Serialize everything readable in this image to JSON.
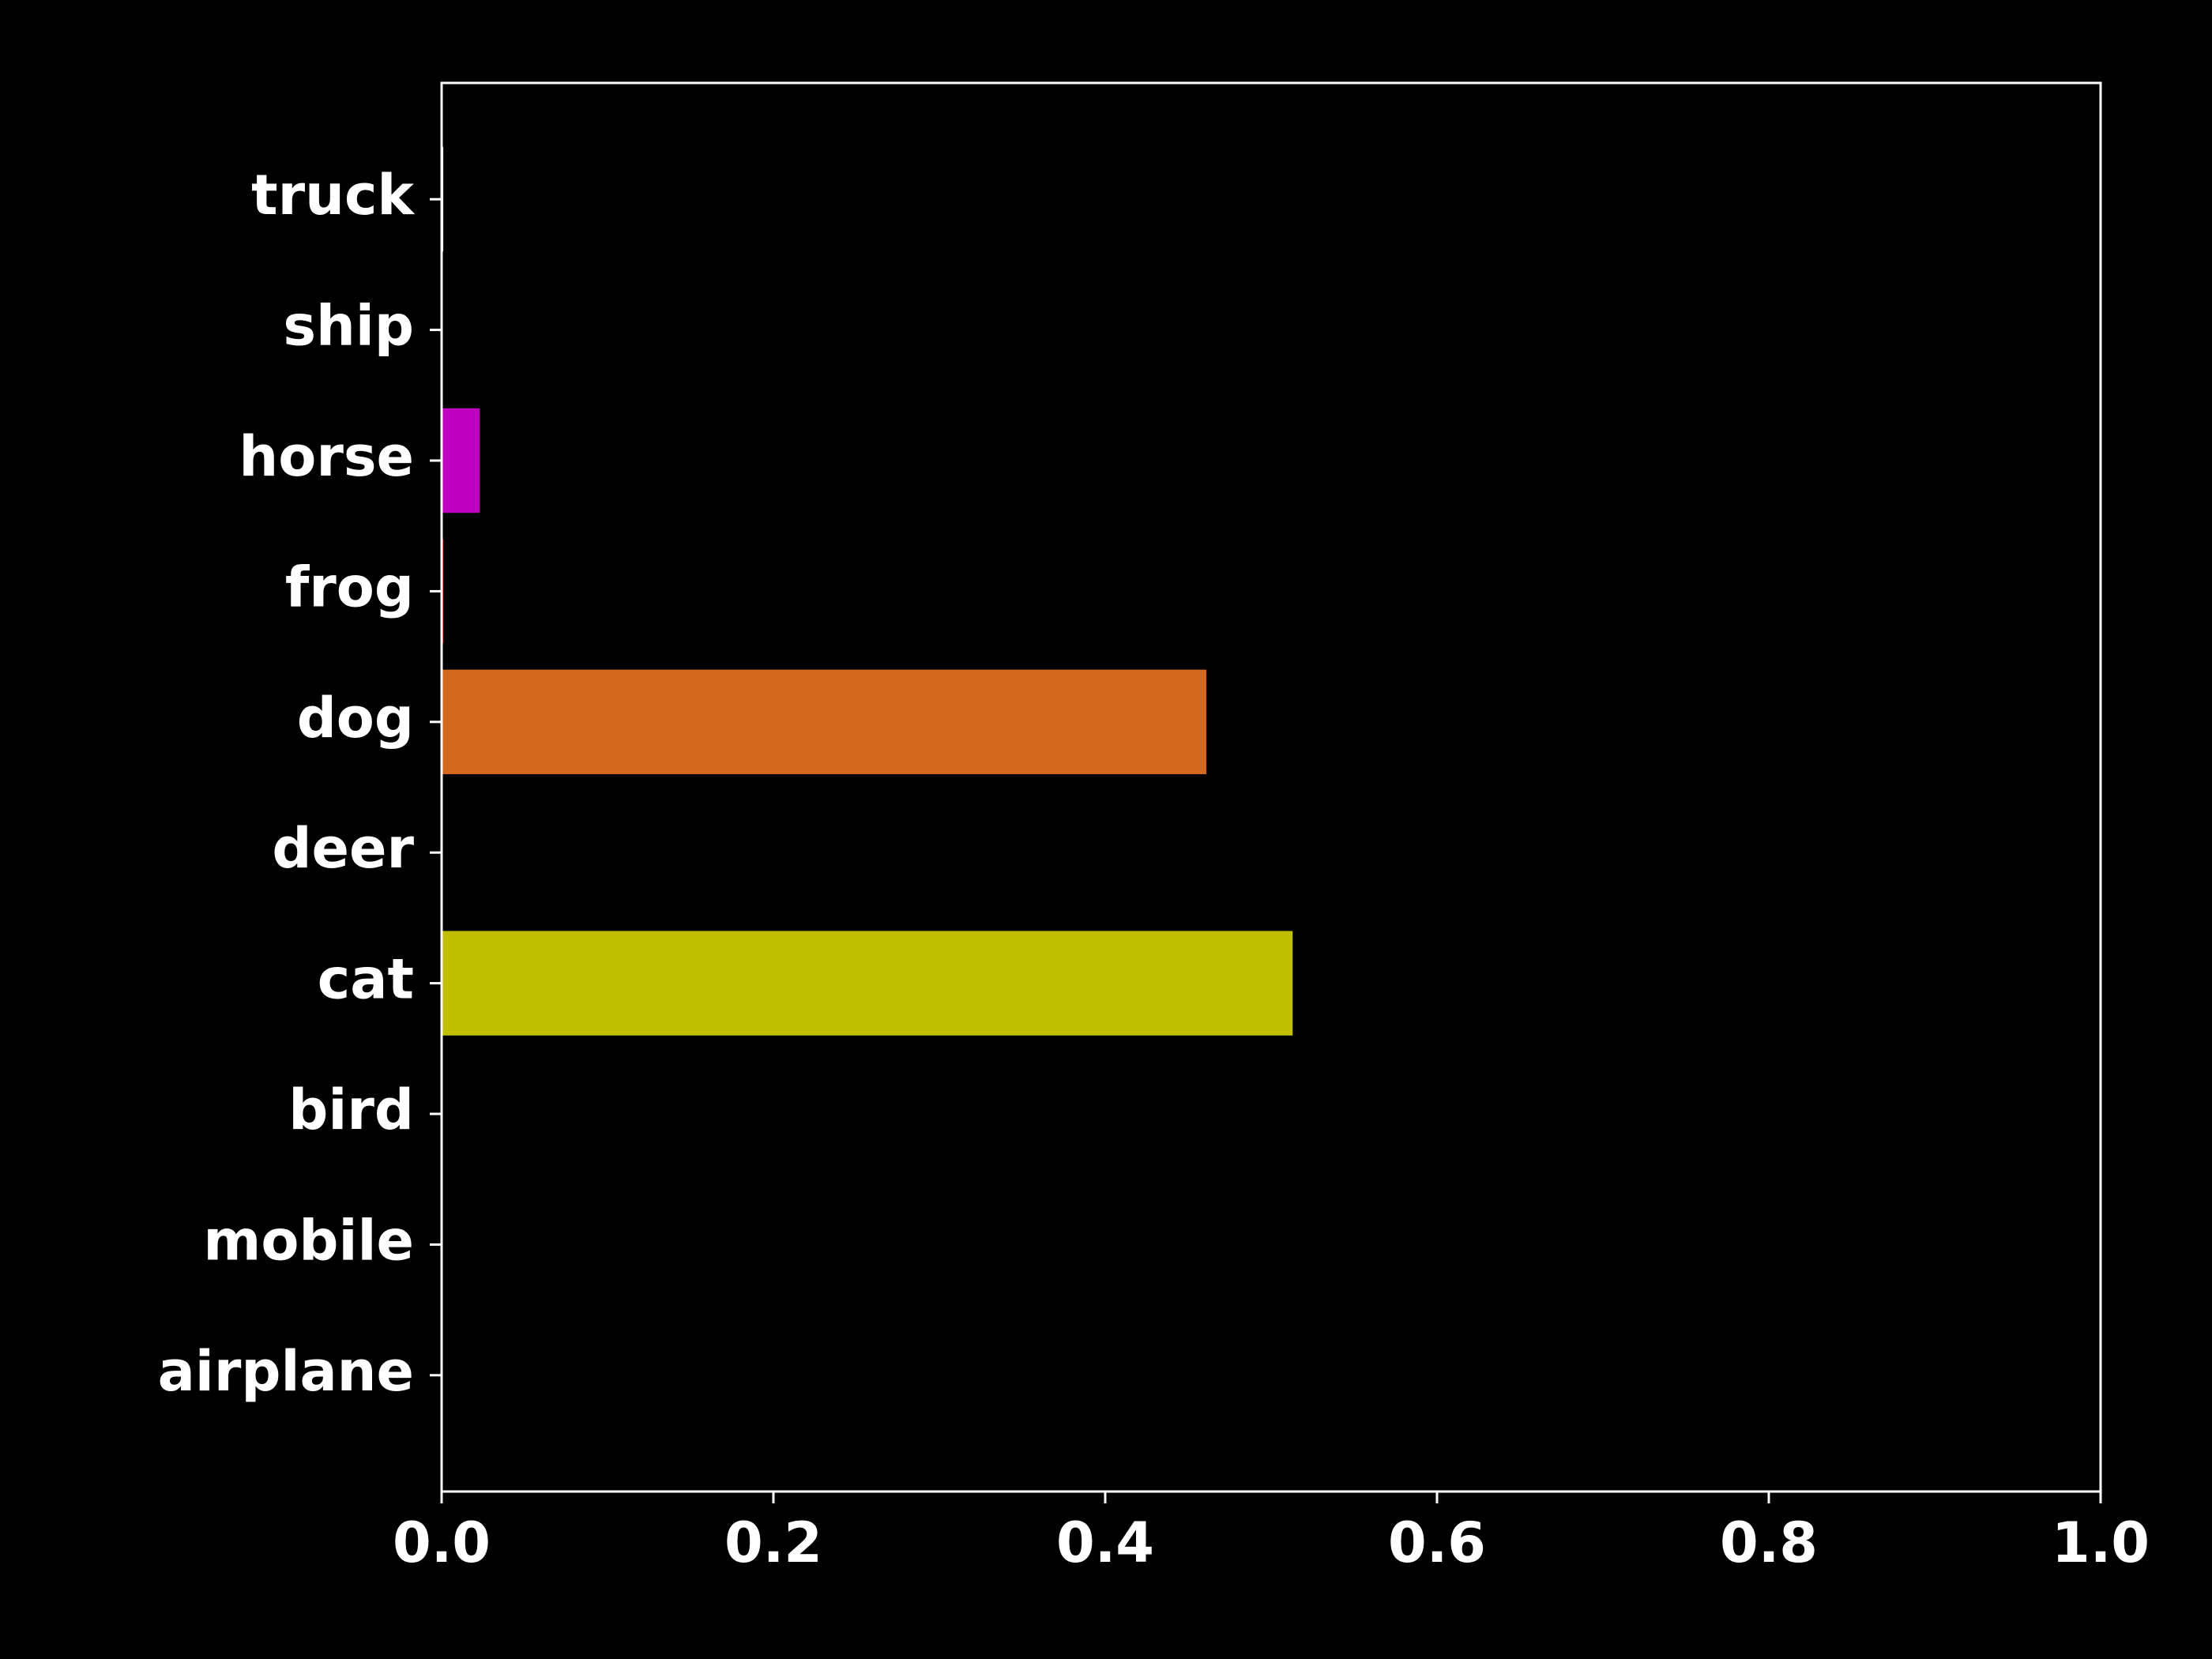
{
  "chart_data": {
    "type": "barh",
    "categories": [
      "airplane",
      "mobile",
      "bird",
      "cat",
      "deer",
      "dog",
      "frog",
      "horse",
      "ship",
      "truck"
    ],
    "values": [
      0,
      0,
      0,
      0.513,
      0,
      0.461,
      0.001,
      0.023,
      0,
      0.001
    ],
    "colors": [
      "#0000ff",
      "#008000",
      "#00bfbf",
      "#bfbf00",
      "#404040",
      "#d2691e",
      "#ff0000",
      "#bf00bf",
      "#808080",
      "#ffffff"
    ],
    "xlim": [
      0,
      1
    ],
    "xticks": [
      {
        "value": 0,
        "label": "0.0"
      },
      0.2,
      0.4,
      0.6,
      0.8,
      {
        "value": 1,
        "label": "1.0"
      }
    ],
    "grid": false
  }
}
